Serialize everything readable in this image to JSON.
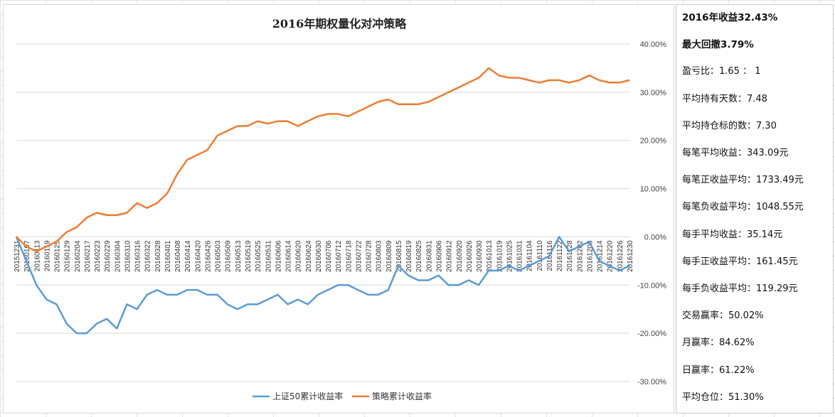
{
  "chart_data": {
    "type": "line",
    "title": "2016年期权量化对冲策略",
    "xlabel": "",
    "ylabel": "",
    "ylim": [
      -0.3,
      0.4
    ],
    "yticks": [
      "40.00%",
      "30.00%",
      "20.00%",
      "10.00%",
      "0.00%",
      "-10.00%",
      "-20.00%",
      "-30.00%"
    ],
    "ytick_values": [
      0.4,
      0.3,
      0.2,
      0.1,
      0.0,
      -0.1,
      -0.2,
      -0.3
    ],
    "x_tick_labels": [
      "20151231",
      "20160107",
      "20160113",
      "20160119",
      "20160125",
      "20160129",
      "20160204",
      "20160217",
      "20160223",
      "20160229",
      "20160304",
      "20160310",
      "20160316",
      "20160322",
      "20160328",
      "20160401",
      "20160408",
      "20160414",
      "20160420",
      "20160426",
      "20160503",
      "20160509",
      "20160513",
      "20160519",
      "20160525",
      "20160531",
      "20160606",
      "20160614",
      "20160620",
      "20160624",
      "20160630",
      "20160706",
      "20160712",
      "20160718",
      "20160722",
      "20160728",
      "20160803",
      "20160809",
      "20160815",
      "20160819",
      "20160825",
      "20160831",
      "20160906",
      "20160912",
      "20160920",
      "20160926",
      "20160930",
      "20161013",
      "20161019",
      "20161025",
      "20161031",
      "20161104",
      "20161110",
      "20161116",
      "20161122",
      "20161128",
      "20161202",
      "20161208",
      "20161214",
      "20161220",
      "20161226",
      "20161230"
    ],
    "grid": "horizontal",
    "legend": "bottom",
    "series": [
      {
        "name": "上证50累计收益率",
        "color": "#5b9bd5",
        "values": [
          0.0,
          -0.05,
          -0.1,
          -0.13,
          -0.14,
          -0.18,
          -0.2,
          -0.2,
          -0.18,
          -0.17,
          -0.19,
          -0.14,
          -0.15,
          -0.12,
          -0.11,
          -0.12,
          -0.12,
          -0.11,
          -0.11,
          -0.12,
          -0.12,
          -0.14,
          -0.15,
          -0.14,
          -0.14,
          -0.13,
          -0.12,
          -0.14,
          -0.13,
          -0.14,
          -0.12,
          -0.11,
          -0.1,
          -0.1,
          -0.11,
          -0.12,
          -0.12,
          -0.11,
          -0.06,
          -0.08,
          -0.09,
          -0.09,
          -0.08,
          -0.1,
          -0.1,
          -0.09,
          -0.1,
          -0.07,
          -0.07,
          -0.06,
          -0.07,
          -0.06,
          -0.05,
          -0.04,
          0.0,
          -0.03,
          -0.02,
          -0.01,
          -0.05,
          -0.06,
          -0.07,
          -0.06
        ]
      },
      {
        "name": "策略累计收益率",
        "color": "#ed7d31",
        "values": [
          0.0,
          -0.02,
          -0.03,
          -0.02,
          -0.01,
          0.01,
          0.02,
          0.04,
          0.05,
          0.045,
          0.045,
          0.05,
          0.07,
          0.06,
          0.07,
          0.09,
          0.13,
          0.16,
          0.17,
          0.18,
          0.21,
          0.22,
          0.23,
          0.23,
          0.24,
          0.235,
          0.24,
          0.24,
          0.23,
          0.24,
          0.25,
          0.255,
          0.255,
          0.25,
          0.26,
          0.27,
          0.28,
          0.285,
          0.275,
          0.275,
          0.275,
          0.28,
          0.29,
          0.3,
          0.31,
          0.32,
          0.33,
          0.35,
          0.335,
          0.33,
          0.33,
          0.325,
          0.32,
          0.325,
          0.325,
          0.32,
          0.325,
          0.335,
          0.325,
          0.32,
          0.32,
          0.325
        ]
      }
    ]
  },
  "stats": [
    {
      "text": "2016年收益32.43%",
      "bold": true
    },
    {
      "text": "最大回撤3.79%",
      "bold": true
    },
    {
      "text": "盈亏比：1.65 ： 1",
      "bold": false
    },
    {
      "text": "平均持有天数：7.48",
      "bold": false
    },
    {
      "text": "平均持仓标的数：7.30",
      "bold": false
    },
    {
      "text": "每笔平均收益：343.09元",
      "bold": false
    },
    {
      "text": "每笔正收益平均：1733.49元",
      "bold": false
    },
    {
      "text": "每笔负收益平均：1048.55元",
      "bold": false
    },
    {
      "text": "每手平均收益：35.14元",
      "bold": false
    },
    {
      "text": "每手正收益平均：161.45元",
      "bold": false
    },
    {
      "text": "每手负收益平均：119.29元",
      "bold": false
    },
    {
      "text": "交易赢率：50.02%",
      "bold": false
    },
    {
      "text": "月赢率：84.62%",
      "bold": false
    },
    {
      "text": "日赢率：61.22%",
      "bold": false
    },
    {
      "text": "平均仓位：51.30%",
      "bold": false
    }
  ]
}
